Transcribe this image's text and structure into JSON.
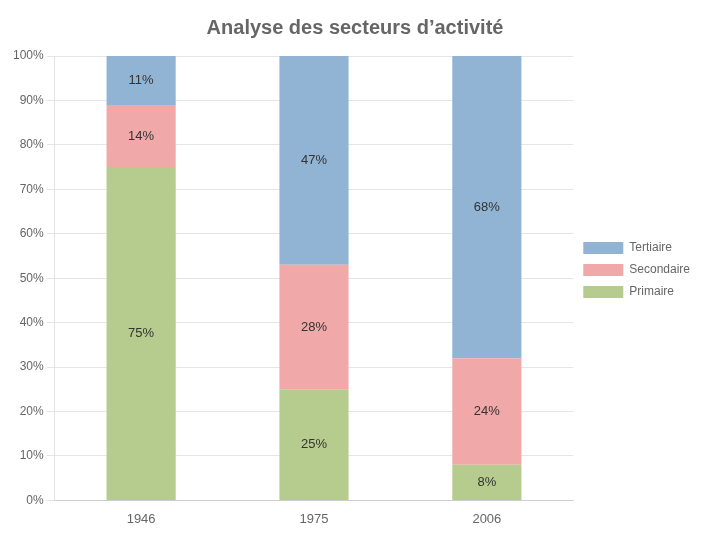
{
  "chart_data": {
    "type": "bar",
    "title": "Analyse des secteurs d’activité",
    "categories": [
      "1946",
      "1975",
      "2006"
    ],
    "series": [
      {
        "name": "Primaire",
        "color": "#b5cc8e",
        "values": [
          75,
          25,
          8
        ],
        "value_labels": [
          "75%",
          "25%",
          "8%"
        ]
      },
      {
        "name": "Secondaire",
        "color": "#f0a8a8",
        "values": [
          14,
          28,
          24
        ],
        "value_labels": [
          "14%",
          "28%",
          "24%"
        ]
      },
      {
        "name": "Tertiaire",
        "color": "#92b4d4",
        "values": [
          11,
          47,
          68
        ],
        "value_labels": [
          "11%",
          "47%",
          "68%"
        ]
      }
    ],
    "stacked": true,
    "data_labels": true,
    "ylim": [
      0,
      100
    ],
    "yticks": [
      {
        "value": 0,
        "label": "0%"
      },
      {
        "value": 10,
        "label": "10%"
      },
      {
        "value": 20,
        "label": "20%"
      },
      {
        "value": 30,
        "label": "30%"
      },
      {
        "value": 40,
        "label": "40%"
      },
      {
        "value": 50,
        "label": "50%"
      },
      {
        "value": 60,
        "label": "60%"
      },
      {
        "value": 70,
        "label": "70%"
      },
      {
        "value": 80,
        "label": "80%"
      },
      {
        "value": 90,
        "label": "90%"
      },
      {
        "value": 100,
        "label": "100%"
      }
    ],
    "grid": true,
    "legend": "right"
  }
}
